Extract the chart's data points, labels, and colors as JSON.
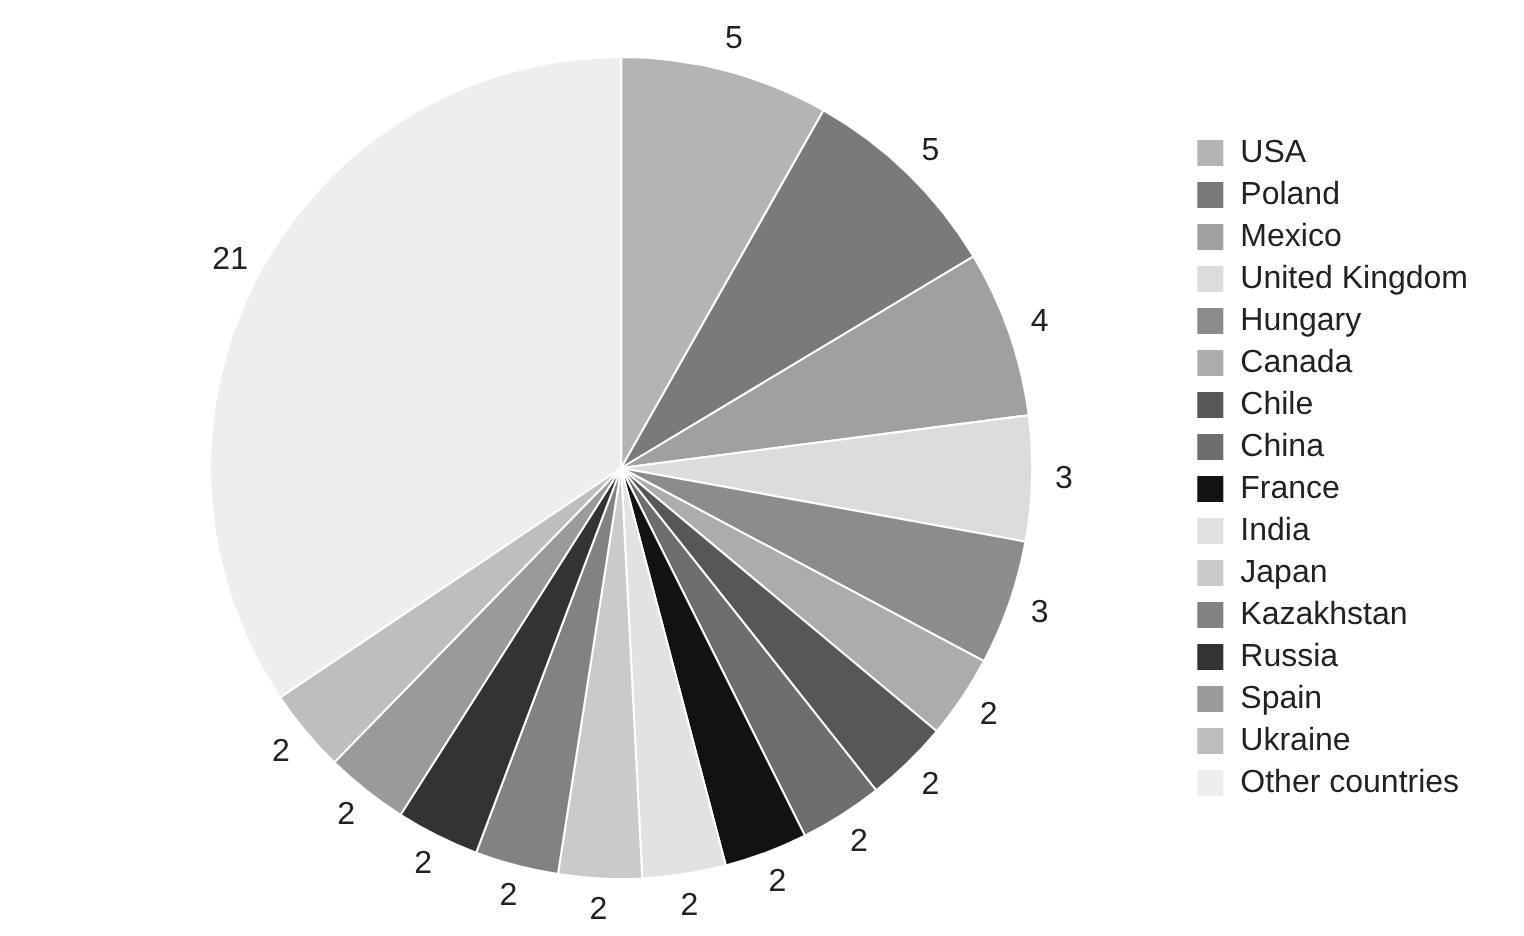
{
  "chart_data": {
    "type": "pie",
    "categories": [
      "USA",
      "Poland",
      "Mexico",
      "United Kingdom",
      "Hungary",
      "Canada",
      "Chile",
      "China",
      "France",
      "India",
      "Japan",
      "Kazakhstan",
      "Russia",
      "Spain",
      "Ukraine",
      "Other countries"
    ],
    "values": [
      5,
      5,
      4,
      3,
      3,
      2,
      2,
      2,
      2,
      2,
      2,
      2,
      2,
      2,
      2,
      21
    ],
    "colors": [
      "#b4b4b4",
      "#7a7a7a",
      "#a0a0a0",
      "#dcdcdc",
      "#8c8c8c",
      "#acacac",
      "#575757",
      "#6e6e6e",
      "#121212",
      "#e2e2e2",
      "#cacaca",
      "#828282",
      "#333333",
      "#9a9a9a",
      "#bebebe",
      "#eeeeee"
    ],
    "data_labels": true,
    "legend": "right"
  }
}
